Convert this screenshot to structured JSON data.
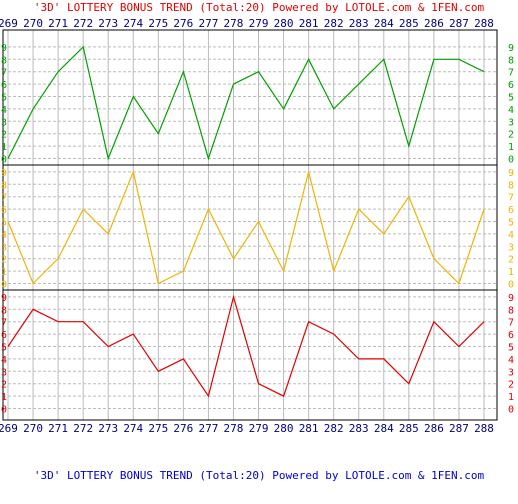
{
  "chart_data": {
    "type": "line",
    "title_top": "'3D' LOTTERY BONUS TREND (Total:20)  Powered by LOTOLE.com & 1FEN.com",
    "title_bottom": "'3D' LOTTERY BONUS TREND (Total:20)  Powered by LOTOLE.com & 1FEN.com",
    "categories": [
      "269",
      "270",
      "271",
      "272",
      "273",
      "274",
      "275",
      "276",
      "277",
      "278",
      "279",
      "280",
      "281",
      "282",
      "283",
      "284",
      "285",
      "286",
      "287",
      "288"
    ],
    "y_tick_labels": [
      "0",
      "1",
      "2",
      "3",
      "4",
      "5",
      "6",
      "7",
      "8",
      "9"
    ],
    "ylim": [
      0,
      9
    ],
    "grid": true,
    "series": [
      {
        "color": "#00a000",
        "values": [
          0,
          4,
          7,
          9,
          0,
          5,
          2,
          7,
          0,
          6,
          7,
          4,
          8,
          4,
          6,
          8,
          1,
          8,
          8,
          7
        ]
      },
      {
        "color": "#f0b400",
        "values": [
          5,
          0,
          2,
          6,
          4,
          9,
          0,
          1,
          6,
          2,
          5,
          1,
          9,
          1,
          6,
          4,
          7,
          2,
          0,
          6
        ]
      },
      {
        "color": "#e00000",
        "values": [
          5,
          8,
          7,
          7,
          5,
          6,
          3,
          4,
          1,
          9,
          2,
          1,
          7,
          6,
          4,
          4,
          2,
          7,
          5,
          7
        ]
      }
    ],
    "colors": {
      "top_title": "#e00000",
      "bottom_title": "#0000cc",
      "x_labels": "#000080",
      "frame": "#000000",
      "grid": "#bbbbbb",
      "band_separator": "#000000"
    }
  }
}
